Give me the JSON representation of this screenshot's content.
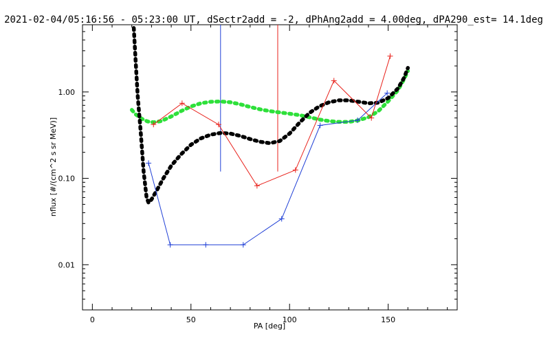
{
  "chart_data": {
    "type": "line",
    "title": "2021-02-04/05:16:56 - 05:23:00 UT, dSectr2add = -2, dPhAng2add = 4.00deg, dPA290_est=  14.1deg",
    "xlabel": "PA [deg]",
    "ylabel": "nflux [#/(cm^2 s sr MeV)]",
    "xlim": [
      -5,
      185
    ],
    "ylim": [
      0.003,
      6
    ],
    "yscale": "log",
    "grid": false,
    "xticks": [
      0,
      50,
      100,
      150
    ],
    "xtick_labels": [
      "0",
      "50",
      "100",
      "150"
    ],
    "yticks": [
      0.01,
      0.1,
      1.0
    ],
    "ytick_labels": [
      "0.01",
      "0.10",
      "1.00"
    ],
    "colors": {
      "red": "#e8201a",
      "blue": "#1f3fd6",
      "black": "#000000",
      "green": "#2ee03a"
    },
    "series": [
      {
        "color": "red",
        "style": "line-plus",
        "points": [
          [
            31,
            0.42
          ],
          [
            45.5,
            0.74
          ],
          [
            64,
            0.42
          ],
          [
            83.5,
            0.082
          ],
          [
            103,
            0.125
          ],
          [
            122.5,
            1.35
          ],
          [
            141.5,
            0.5
          ],
          [
            151,
            2.6
          ]
        ]
      },
      {
        "color": "blue",
        "style": "line-plus",
        "points": [
          [
            28.5,
            0.15
          ],
          [
            39.5,
            0.017
          ],
          [
            57.5,
            0.017
          ],
          [
            76.5,
            0.017
          ],
          [
            96,
            0.034
          ],
          [
            115.5,
            0.41
          ],
          [
            134.5,
            0.47
          ],
          [
            149.5,
            0.97
          ]
        ]
      },
      {
        "color": "black",
        "style": "thick-dashed",
        "points": [
          [
            21,
            5.5
          ],
          [
            22,
            2.2
          ],
          [
            23,
            0.9
          ],
          [
            24.5,
            0.35
          ],
          [
            26,
            0.12
          ],
          [
            27.5,
            0.06
          ],
          [
            28.5,
            0.052
          ],
          [
            30,
            0.057
          ],
          [
            33,
            0.075
          ],
          [
            36,
            0.1
          ],
          [
            40,
            0.14
          ],
          [
            45,
            0.19
          ],
          [
            50,
            0.245
          ],
          [
            55,
            0.29
          ],
          [
            60,
            0.32
          ],
          [
            65,
            0.335
          ],
          [
            70,
            0.33
          ],
          [
            75,
            0.31
          ],
          [
            80,
            0.285
          ],
          [
            85,
            0.265
          ],
          [
            90,
            0.255
          ],
          [
            95,
            0.27
          ],
          [
            100,
            0.33
          ],
          [
            105,
            0.44
          ],
          [
            110,
            0.57
          ],
          [
            115,
            0.68
          ],
          [
            120,
            0.76
          ],
          [
            125,
            0.8
          ],
          [
            130,
            0.8
          ],
          [
            135,
            0.77
          ],
          [
            140,
            0.74
          ],
          [
            145,
            0.75
          ],
          [
            150,
            0.85
          ],
          [
            155,
            1.1
          ],
          [
            158,
            1.45
          ],
          [
            160,
            1.9
          ]
        ]
      },
      {
        "color": "green",
        "style": "thick-dashed",
        "points": [
          [
            20,
            0.62
          ],
          [
            22,
            0.55
          ],
          [
            25,
            0.49
          ],
          [
            28,
            0.455
          ],
          [
            31,
            0.445
          ],
          [
            35,
            0.46
          ],
          [
            40,
            0.52
          ],
          [
            45,
            0.6
          ],
          [
            50,
            0.68
          ],
          [
            55,
            0.74
          ],
          [
            60,
            0.77
          ],
          [
            65,
            0.775
          ],
          [
            70,
            0.76
          ],
          [
            75,
            0.72
          ],
          [
            80,
            0.67
          ],
          [
            85,
            0.63
          ],
          [
            90,
            0.6
          ],
          [
            95,
            0.58
          ],
          [
            100,
            0.56
          ],
          [
            105,
            0.54
          ],
          [
            110,
            0.51
          ],
          [
            115,
            0.48
          ],
          [
            120,
            0.46
          ],
          [
            125,
            0.45
          ],
          [
            130,
            0.45
          ],
          [
            135,
            0.47
          ],
          [
            140,
            0.51
          ],
          [
            145,
            0.6
          ],
          [
            150,
            0.78
          ],
          [
            155,
            1.05
          ],
          [
            158,
            1.4
          ],
          [
            160,
            1.75
          ]
        ]
      }
    ],
    "markers": [
      {
        "color": "blue",
        "x": 65,
        "y_from": 0.12,
        "y_to": 6
      },
      {
        "color": "red",
        "x": 94,
        "y_from": 0.12,
        "y_to": 6
      }
    ]
  }
}
